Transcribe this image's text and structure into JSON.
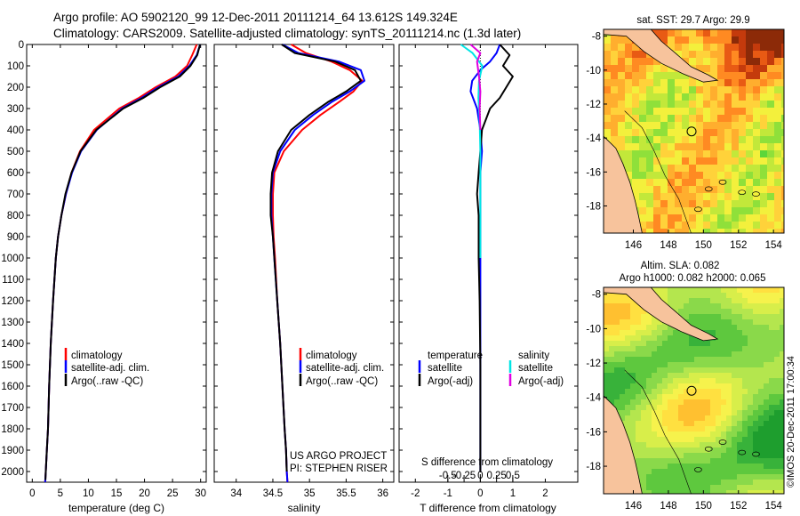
{
  "header": {
    "line1": "Argo profile: AO 5902120_99 12-Dec-2011 20111214_64 13.612S 149.324E",
    "line2": "Climatology: CARS2009. Satellite-adjusted climatology: synTS_20111214.nc (1.3d later)"
  },
  "colors": {
    "climatology": "#ff0000",
    "satellite": "#0000ff",
    "argo": "#000000",
    "sal_satellite": "#00e5e5",
    "sal_argo": "#e000e0",
    "land": "#f7c39c"
  },
  "chart_data": [
    {
      "id": "temperature",
      "type": "line",
      "xlabel": "temperature (deg C)",
      "ylabel": "",
      "xlim": [
        -1,
        31
      ],
      "ylim": [
        2050,
        0
      ],
      "xticks": [
        0,
        5,
        10,
        15,
        20,
        25,
        30
      ],
      "xtick_labels": [
        "0",
        "5",
        "10",
        "15",
        "20",
        "25",
        "30"
      ],
      "yticks": [
        0,
        100,
        200,
        300,
        400,
        500,
        600,
        700,
        800,
        900,
        1000,
        1100,
        1200,
        1300,
        1400,
        1500,
        1600,
        1700,
        1800,
        1900,
        2000
      ],
      "ytick_labels": [
        "0",
        "100",
        "200",
        "300",
        "400",
        "500",
        "600",
        "700",
        "800",
        "900",
        "1000",
        "1100",
        "1200",
        "1300",
        "1400",
        "1500",
        "1600",
        "1700",
        "1800",
        "1900",
        "2000"
      ],
      "series": [
        {
          "name": "climatology",
          "color": "#ff0000",
          "x": [
            29.3,
            28.5,
            27.6,
            25.5,
            22,
            19,
            15.5,
            11,
            8.5,
            7,
            6,
            5.2,
            4.6,
            4.2,
            3.7,
            3.3,
            3,
            2.8,
            2.6,
            2.4,
            2.3
          ],
          "y": [
            0,
            50,
            100,
            150,
            200,
            250,
            300,
            400,
            500,
            600,
            700,
            800,
            900,
            1000,
            1200,
            1400,
            1600,
            1800,
            1900,
            2000,
            2050
          ]
        },
        {
          "name": "satellite-adj. clim.",
          "color": "#0000ff",
          "x": [
            29.9,
            29.3,
            28,
            26,
            22.5,
            19.5,
            16,
            11.5,
            8.7,
            7.1,
            6,
            5.2,
            4.6,
            4.2,
            3.7,
            3.3,
            3,
            2.8,
            2.6,
            2.4,
            2.3
          ],
          "y": [
            0,
            50,
            100,
            150,
            200,
            250,
            300,
            400,
            500,
            600,
            700,
            800,
            900,
            1000,
            1200,
            1400,
            1600,
            1800,
            1900,
            2000,
            2050
          ]
        },
        {
          "name": "Argo(..raw -QC)",
          "color": "#000000",
          "x": [
            29.9,
            29.4,
            28.2,
            26.3,
            22.8,
            19.8,
            16.2,
            11.4,
            8.6,
            7,
            5.9,
            5.2,
            4.6,
            4.2,
            3.7,
            3.3,
            3,
            2.8,
            2.6,
            2.4,
            2.35
          ],
          "y": [
            0,
            50,
            100,
            150,
            200,
            250,
            300,
            400,
            500,
            600,
            700,
            800,
            900,
            1000,
            1200,
            1400,
            1600,
            1800,
            1900,
            2000,
            2040
          ]
        }
      ],
      "legend": [
        "climatology",
        "satellite-adj. clim.",
        "Argo(..raw -QC)"
      ],
      "legend_position": "lower-center"
    },
    {
      "id": "salinity",
      "type": "line",
      "xlabel": "salinity",
      "xlim": [
        33.7,
        36.15
      ],
      "ylim": [
        2050,
        0
      ],
      "xticks": [
        34,
        34.5,
        35,
        35.5,
        36
      ],
      "xtick_labels": [
        "34",
        "34.5",
        "35",
        "35.5",
        "36"
      ],
      "series": [
        {
          "name": "climatology",
          "color": "#ff0000",
          "x": [
            34.75,
            34.95,
            35.3,
            35.55,
            35.72,
            35.6,
            35.4,
            35.15,
            34.9,
            34.65,
            34.52,
            34.5,
            34.5,
            34.51,
            34.53,
            34.56,
            34.6,
            34.63,
            34.66,
            34.68,
            34.69,
            34.7
          ],
          "y": [
            0,
            40,
            80,
            120,
            170,
            220,
            270,
            330,
            400,
            500,
            600,
            700,
            800,
            900,
            1000,
            1200,
            1400,
            1600,
            1800,
            1900,
            2000,
            2050
          ]
        },
        {
          "name": "satellite-adj. clim.",
          "color": "#0000ff",
          "x": [
            34.63,
            34.85,
            35.4,
            35.7,
            35.75,
            35.55,
            35.3,
            35.05,
            34.8,
            34.6,
            34.5,
            34.48,
            34.48,
            34.5,
            34.52,
            34.56,
            34.6,
            34.63,
            34.66,
            34.68,
            34.69,
            34.7
          ],
          "y": [
            0,
            40,
            80,
            120,
            170,
            220,
            270,
            330,
            400,
            500,
            600,
            700,
            800,
            900,
            1000,
            1200,
            1400,
            1600,
            1800,
            1900,
            2000,
            2050
          ]
        },
        {
          "name": "Argo(..raw -QC)",
          "color": "#000000",
          "x": [
            34.62,
            34.8,
            35.35,
            35.62,
            35.7,
            35.5,
            35.25,
            35,
            34.75,
            34.57,
            34.49,
            34.47,
            34.47,
            34.5,
            34.52,
            34.56,
            34.6,
            34.63,
            34.66,
            34.68,
            34.69
          ],
          "y": [
            0,
            40,
            80,
            120,
            170,
            220,
            270,
            330,
            400,
            500,
            600,
            700,
            800,
            900,
            1000,
            1200,
            1400,
            1600,
            1800,
            1900,
            2000
          ]
        }
      ],
      "legend": [
        "climatology",
        "satellite-adj. clim.",
        "Argo(..raw -QC)"
      ],
      "legend_position": "lower-center",
      "annotation": [
        "US ARGO PROJECT",
        "PI: STEPHEN RISER"
      ]
    },
    {
      "id": "difference",
      "type": "line",
      "xlabel": "T difference from climatology",
      "top_label": "S difference from climatology",
      "xlim": [
        -2.5,
        3
      ],
      "ylim": [
        2050,
        0
      ],
      "xticks": [
        -2,
        -1,
        0,
        1,
        2
      ],
      "xtick_labels": [
        "-2",
        "-1",
        "0",
        "1",
        "2"
      ],
      "s_ticks": [
        -0.5,
        -0.25,
        0,
        0.25,
        0.5
      ],
      "s_tick_labels": [
        "-0.5",
        "-0.25",
        "0",
        "0.25",
        "0.5"
      ],
      "s_scale": 2,
      "series": [
        {
          "name": "temperature satellite",
          "color": "#0000ff",
          "kind": "T",
          "x": [
            0.6,
            0.5,
            0.3,
            0.0,
            -0.25,
            -0.3,
            -0.1,
            0.0,
            0.05,
            0.0,
            0.0,
            0.0,
            0.0,
            0.0,
            0.0,
            0.0,
            0.0
          ],
          "y": [
            0,
            40,
            80,
            120,
            170,
            220,
            300,
            400,
            500,
            600,
            800,
            1000,
            1200,
            1400,
            1600,
            1800,
            2000
          ]
        },
        {
          "name": "temperature Argo(-adj)",
          "color": "#000000",
          "kind": "T",
          "x": [
            0.6,
            0.9,
            0.7,
            1.0,
            0.8,
            0.6,
            0.3,
            0.05,
            0.0,
            -0.05,
            -0.1,
            -0.05,
            -0.05,
            -0.02,
            0.0,
            0.0,
            0.0
          ],
          "y": [
            0,
            50,
            100,
            150,
            200,
            250,
            300,
            400,
            500,
            600,
            700,
            800,
            1000,
            1200,
            1500,
            1800,
            2000
          ]
        },
        {
          "name": "salinity satellite",
          "color": "#00e5e5",
          "kind": "S",
          "x": [
            -0.3,
            -0.12,
            0.03,
            -0.02,
            -0.03,
            -0.01,
            0.0,
            0.0,
            0.0
          ],
          "y": [
            0,
            40,
            100,
            170,
            250,
            350,
            500,
            800,
            1000
          ]
        },
        {
          "name": "salinity Argo(-adj)",
          "color": "#e000e0",
          "kind": "S",
          "x": [
            -0.15,
            0.0,
            -0.05,
            -0.02,
            0.0,
            -0.01,
            0.0
          ],
          "y": [
            0,
            40,
            80,
            150,
            220,
            300,
            400
          ]
        }
      ],
      "legend": {
        "temperature_title": "temperature",
        "salinity_title": "salinity",
        "temperature": [
          "satellite",
          "Argo(-adj)"
        ],
        "salinity": [
          "satellite",
          "Argo(-adj)"
        ]
      },
      "legend_position": "lower-center"
    },
    {
      "id": "sst_map",
      "type": "heatmap",
      "title": "sat. SST: 29.7 Argo: 29.9",
      "xlim": [
        144.3,
        154.6
      ],
      "ylim": [
        -19.6,
        -7.6
      ],
      "xticks": [
        146,
        148,
        150,
        152,
        154
      ],
      "xtick_labels": [
        "146",
        "148",
        "150",
        "152",
        "154"
      ],
      "yticks": [
        -8,
        -10,
        -12,
        -14,
        -16,
        -18
      ],
      "ytick_labels": [
        "-8",
        "-10",
        "-12",
        "-14",
        "-16",
        "-18"
      ],
      "marker": {
        "lon": 149.324,
        "lat": -13.612
      }
    },
    {
      "id": "sla_map",
      "type": "heatmap",
      "title": "Altim. SLA: 0.082",
      "subtitle": "Argo h1000: 0.082 h2000: 0.065",
      "xlim": [
        144.3,
        154.6
      ],
      "ylim": [
        -19.6,
        -7.6
      ],
      "xticks": [
        146,
        148,
        150,
        152,
        154
      ],
      "xtick_labels": [
        "146",
        "148",
        "150",
        "152",
        "154"
      ],
      "yticks": [
        -8,
        -10,
        -12,
        -14,
        -16,
        -18
      ],
      "ytick_labels": [
        "-8",
        "-10",
        "-12",
        "-14",
        "-16",
        "-18"
      ],
      "marker": {
        "lon": 149.324,
        "lat": -13.612
      }
    }
  ],
  "footer": {
    "credit": "©IMOS 20-Dec-2011 17:00:34"
  }
}
